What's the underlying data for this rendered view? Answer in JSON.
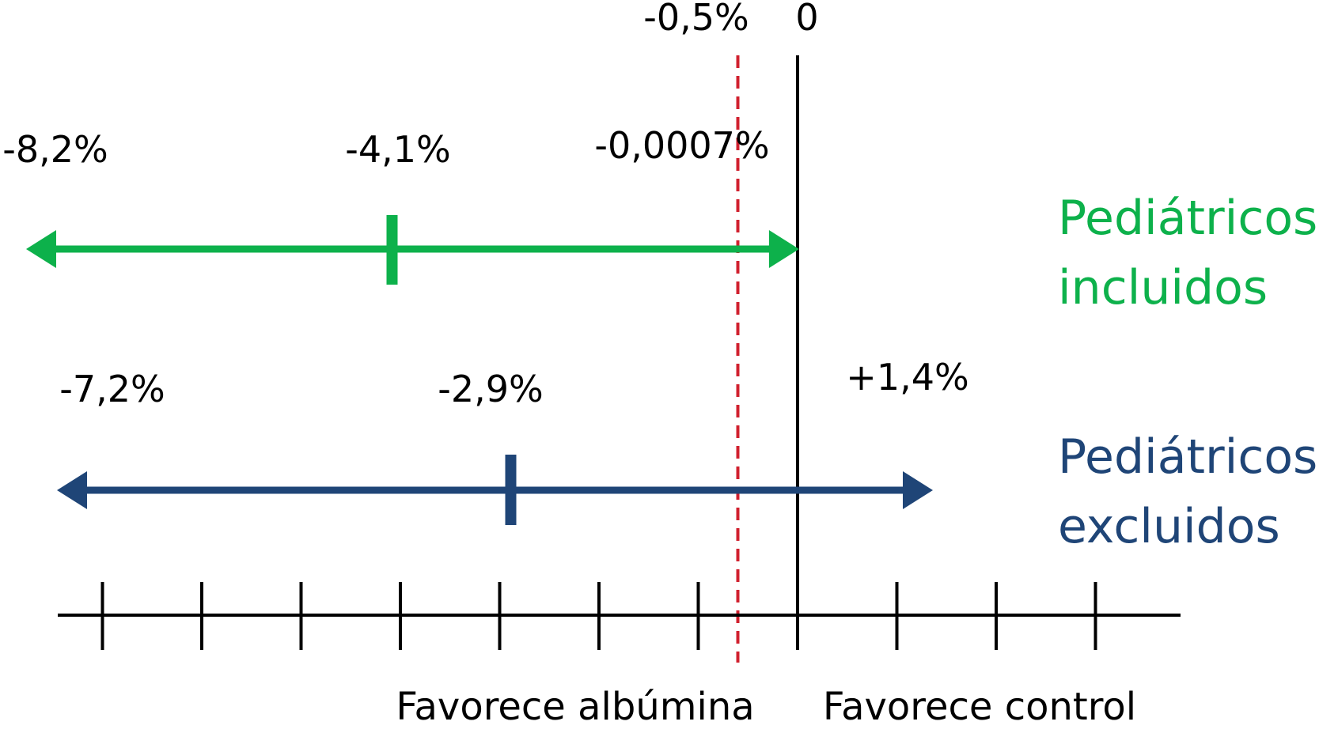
{
  "colors": {
    "green": "#0db14b",
    "blue": "#1f4577",
    "red": "#d0202e",
    "black": "#000000"
  },
  "top_labels": {
    "threshold": "-0,5%",
    "zero": "0"
  },
  "series": [
    {
      "key": "included",
      "name_line1": "Pediátricos",
      "name_line2": "incluidos",
      "low_label": "-8,2%",
      "point_label": "-4,1%",
      "high_label": "-0,0007%",
      "low": -8.2,
      "point": -4.1,
      "high": -0.0007,
      "color": "#0db14b"
    },
    {
      "key": "excluded",
      "name_line1": "Pediátricos",
      "name_line2": "excluidos",
      "low_label": "-7,2%",
      "point_label": "-2,9%",
      "high_label": "+1,4%",
      "low": -7.2,
      "point": -2.9,
      "high": 1.4,
      "color": "#1f4577"
    }
  ],
  "threshold_value": -0.5,
  "axis": {
    "footer_left": "Favorece albúmina",
    "footer_right": "Favorece control"
  }
}
